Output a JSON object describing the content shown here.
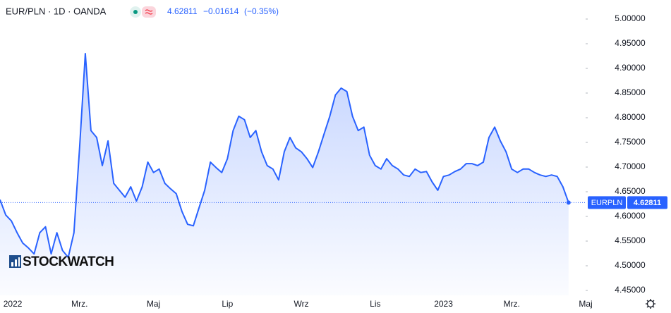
{
  "chart_data": {
    "type": "area",
    "title": "EUR/PLN · 1D · OANDA",
    "change": "−0.01614",
    "change_percent": "(−0.35%)",
    "watermark": "STOCKWATCH",
    "categories": [
      null,
      null,
      "2022",
      null,
      null,
      null,
      null,
      null,
      null,
      null,
      null,
      null,
      null,
      null,
      "Mrz.",
      null,
      null,
      null,
      null,
      null,
      null,
      null,
      null,
      null,
      null,
      null,
      null,
      "Maj",
      null,
      null,
      null,
      null,
      null,
      null,
      null,
      null,
      null,
      null,
      null,
      null,
      "Lip",
      null,
      null,
      null,
      null,
      null,
      null,
      null,
      null,
      null,
      null,
      null,
      null,
      "Wrz",
      null,
      null,
      null,
      null,
      null,
      null,
      null,
      null,
      null,
      null,
      null,
      null,
      "Lis",
      null,
      null,
      null,
      null,
      null,
      null,
      null,
      null,
      null,
      null,
      null,
      "2023",
      null,
      null,
      null,
      null,
      null,
      null,
      null,
      null,
      null,
      null,
      null,
      "Mrz.",
      null,
      null,
      null,
      null,
      null,
      null,
      null,
      null,
      null,
      null,
      null,
      null,
      "Maj"
    ],
    "series": [
      {
        "name": "EURPLN",
        "color": "#2962ff",
        "values": [
          4.634,
          4.603,
          4.591,
          4.567,
          4.546,
          4.536,
          4.524,
          4.567,
          4.579,
          4.524,
          4.567,
          4.531,
          4.517,
          4.567,
          4.739,
          4.93,
          4.774,
          4.76,
          4.703,
          4.753,
          4.667,
          4.653,
          4.639,
          4.66,
          4.631,
          4.66,
          4.71,
          4.689,
          4.696,
          4.667,
          4.656,
          4.646,
          4.61,
          4.584,
          4.581,
          4.617,
          4.653,
          4.71,
          4.699,
          4.689,
          4.717,
          4.774,
          4.803,
          4.796,
          4.76,
          4.774,
          4.731,
          4.703,
          4.696,
          4.674,
          4.731,
          4.76,
          4.739,
          4.731,
          4.717,
          4.699,
          4.731,
          4.767,
          4.803,
          4.846,
          4.86,
          4.853,
          4.803,
          4.774,
          4.781,
          4.724,
          4.703,
          4.696,
          4.717,
          4.703,
          4.696,
          4.684,
          4.681,
          4.696,
          4.689,
          4.691,
          4.67,
          4.653,
          4.681,
          4.684,
          4.691,
          4.696,
          4.707,
          4.707,
          4.703,
          4.71,
          4.76,
          4.781,
          4.753,
          4.731,
          4.696,
          4.689,
          4.696,
          4.696,
          4.689,
          4.684,
          4.681,
          4.684,
          4.681,
          4.66,
          4.62811,
          null,
          null,
          null
        ]
      }
    ],
    "ylim": [
      4.44,
      5.03
    ],
    "yticks": [
      {
        "value": 4.45,
        "label": "4.45000"
      },
      {
        "value": 4.5,
        "label": "4.50000"
      },
      {
        "value": 4.55,
        "label": "4.55000"
      },
      {
        "value": 4.6,
        "label": "4.60000"
      },
      {
        "value": 4.65,
        "label": "4.65000"
      },
      {
        "value": 4.7,
        "label": "4.70000"
      },
      {
        "value": 4.75,
        "label": "4.75000"
      },
      {
        "value": 4.8,
        "label": "4.80000"
      },
      {
        "value": 4.85,
        "label": "4.85000"
      },
      {
        "value": 4.9,
        "label": "4.90000"
      },
      {
        "value": 4.95,
        "label": "4.95000"
      },
      {
        "value": 5,
        "label": "5.00000"
      }
    ],
    "grid": false
  }
}
